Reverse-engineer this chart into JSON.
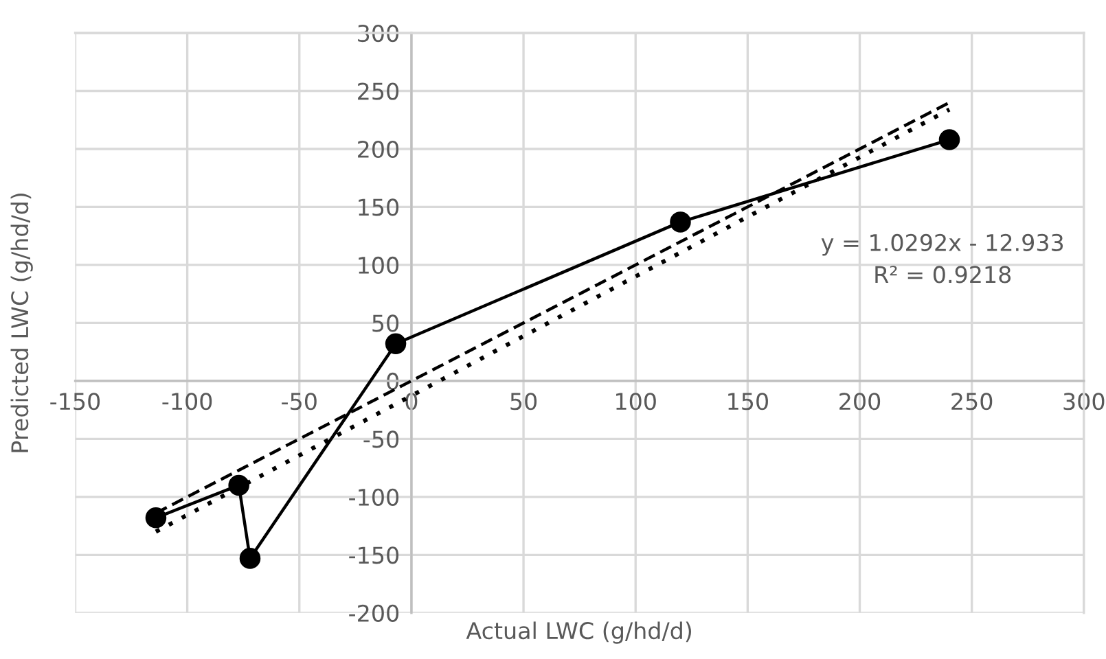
{
  "chart_data": {
    "type": "line",
    "xlabel": "Actual LWC (g/hd/d)",
    "ylabel": "Predicted LWC (g/hd/d)",
    "xlim": [
      -150,
      300
    ],
    "ylim": [
      -200,
      300
    ],
    "xticks": [
      -150,
      -100,
      -50,
      0,
      50,
      100,
      150,
      200,
      250,
      300
    ],
    "yticks": [
      -200,
      -150,
      -100,
      -50,
      0,
      50,
      100,
      150,
      200,
      250,
      300
    ],
    "grid": true,
    "legend": false,
    "series": [
      {
        "color": "#000000",
        "marker": "circle",
        "line_style": "solid",
        "x": [
          -114,
          -77,
          -72,
          -7,
          120,
          240
        ],
        "values": [
          -118,
          -90,
          -153,
          32,
          137,
          208
        ]
      },
      {
        "color": "#000000",
        "marker": "none",
        "line_style": "dashed",
        "x": [
          -114,
          240
        ],
        "values": [
          -114,
          240
        ]
      },
      {
        "color": "#000000",
        "marker": "none",
        "line_style": "dotted",
        "x": [
          -114,
          240
        ],
        "values": [
          -130,
          234
        ]
      }
    ],
    "annotations": [
      "y = 1.0292x - 12.933",
      "R² = 0.9218"
    ]
  }
}
